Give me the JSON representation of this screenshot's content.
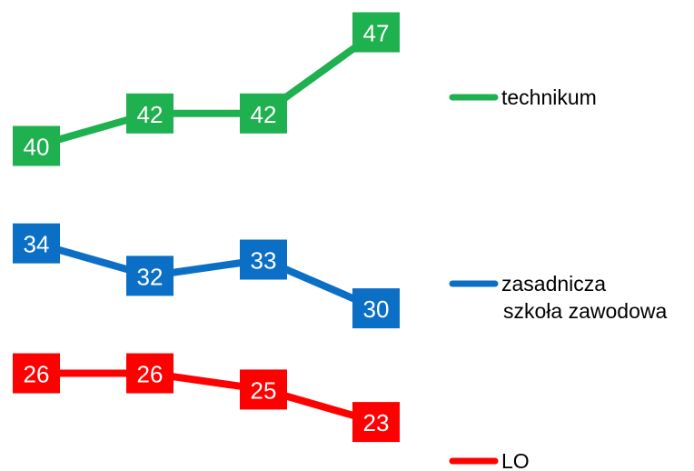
{
  "chart_data": {
    "type": "line",
    "categories": [
      "",
      "",
      "",
      ""
    ],
    "series": [
      {
        "name": "technikum",
        "values": [
          40,
          42,
          42,
          47
        ],
        "color": "#1fb04f"
      },
      {
        "name": "zasadnicza szkoła zawodowa",
        "name_lines": [
          "zasadnicza",
          "szkoła zawodowa"
        ],
        "values": [
          34,
          32,
          33,
          30
        ],
        "color": "#0b6fc6"
      },
      {
        "name": "LO",
        "values": [
          26,
          26,
          25,
          23
        ],
        "color": "#ff0000"
      }
    ],
    "title": "",
    "xlabel": "",
    "ylabel": "",
    "grid": false,
    "data_labels": true,
    "legend_position": "right"
  }
}
